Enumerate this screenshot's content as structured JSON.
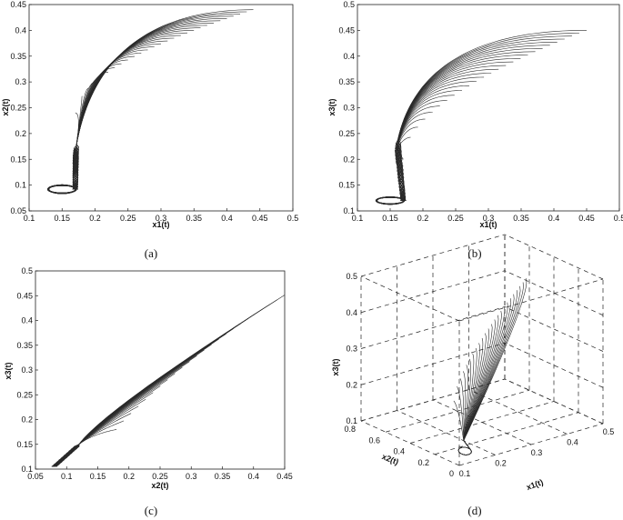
{
  "chart_data": [
    {
      "id": "a",
      "type": "line",
      "caption": "(a)",
      "xlabel": "x1(t)",
      "ylabel": "x2(t)",
      "xlim": [
        0.1,
        0.5
      ],
      "ylim": [
        0.05,
        0.45
      ],
      "xticks": [
        "0.1",
        "0.15",
        "0.2",
        "0.25",
        "0.3",
        "0.35",
        "0.4",
        "0.45",
        "0.5"
      ],
      "yticks": [
        "0.05",
        "0.1",
        "0.15",
        "0.2",
        "0.25",
        "0.3",
        "0.35",
        "0.4",
        "0.45"
      ],
      "trajectories": {
        "count": 28,
        "start_x_range": [
          0.17,
          0.44
        ],
        "start_y_range": [
          0.24,
          0.44
        ],
        "cusp": [
          0.17,
          0.13
        ],
        "loop_center": [
          0.15,
          0.092
        ],
        "loop_radius": [
          0.02,
          0.007
        ]
      }
    },
    {
      "id": "b",
      "type": "line",
      "caption": "(b)",
      "xlabel": "x1(t)",
      "ylabel": "x3(t)",
      "xlim": [
        0.1,
        0.5
      ],
      "ylim": [
        0.1,
        0.5
      ],
      "xticks": [
        "0.1",
        "0.15",
        "0.2",
        "0.25",
        "0.3",
        "0.35",
        "0.4",
        "0.45",
        "0.5"
      ],
      "yticks": [
        "0.1",
        "0.15",
        "0.2",
        "0.25",
        "0.3",
        "0.35",
        "0.4",
        "0.45",
        "0.5"
      ],
      "trajectories": {
        "count": 26,
        "start_x_range": [
          0.17,
          0.45
        ],
        "start_y_range": [
          0.2,
          0.45
        ],
        "cusp": [
          0.16,
          0.19
        ],
        "loop_center": [
          0.15,
          0.12
        ],
        "loop_radius": [
          0.02,
          0.006
        ]
      }
    },
    {
      "id": "c",
      "type": "line",
      "caption": "(c)",
      "xlabel": "x2(t)",
      "ylabel": "x3(t)",
      "xlim": [
        0.05,
        0.45
      ],
      "ylim": [
        0.1,
        0.5
      ],
      "xticks": [
        "0.05",
        "0.1",
        "0.15",
        "0.2",
        "0.25",
        "0.3",
        "0.35",
        "0.4",
        "0.45"
      ],
      "yticks": [
        "0.1",
        "0.15",
        "0.2",
        "0.25",
        "0.3",
        "0.35",
        "0.4",
        "0.45",
        "0.5"
      ],
      "trajectories": {
        "count": 24,
        "end_point": [
          0.08,
          0.105
        ],
        "tip": [
          0.45,
          0.45
        ],
        "lower_edge_start": [
          0.18,
          0.18
        ],
        "lower_edge_end": [
          0.44,
          0.44
        ]
      }
    },
    {
      "id": "d",
      "type": "line",
      "caption": "(d)",
      "xlabel": "x1(t)",
      "ylabel": "x2(t)",
      "zlabel": "x3(t)",
      "xlim": [
        0.1,
        0.5
      ],
      "ylim": [
        0,
        0.8
      ],
      "zlim": [
        0.1,
        0.5
      ],
      "xticks": [
        "0.1",
        "0.2",
        "0.3",
        "0.4",
        "0.5"
      ],
      "yticks": [
        "0",
        "0.2",
        "0.4",
        "0.6",
        "0.8"
      ],
      "zticks": [
        "0.1",
        "0.2",
        "0.3",
        "0.4",
        "0.5"
      ],
      "trajectories": {
        "count": 24
      }
    }
  ]
}
